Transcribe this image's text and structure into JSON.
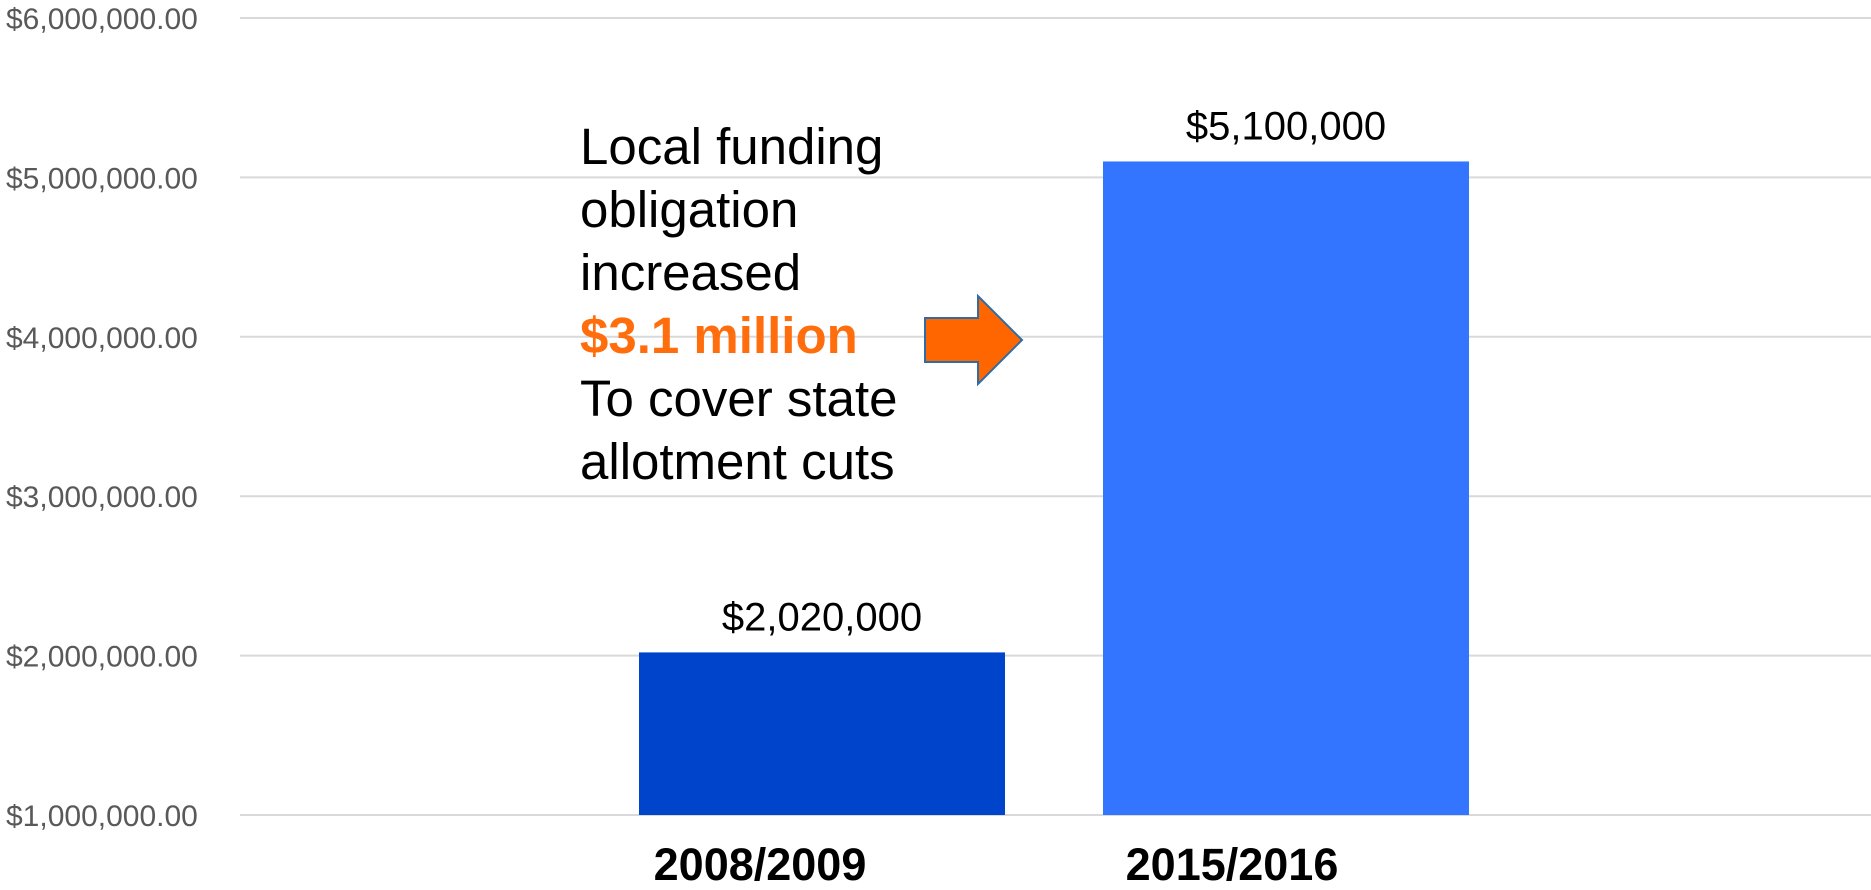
{
  "chart_data": {
    "type": "bar",
    "categories": [
      "2008/2009",
      "2015/2016"
    ],
    "values": [
      2020000,
      5100000
    ],
    "value_labels": [
      "$2,020,000",
      "$5,100,000"
    ],
    "bar_colors": [
      "#0044cc",
      "#3375ff"
    ],
    "ylim": [
      1000000,
      6000000
    ],
    "yticks": [
      1000000,
      2000000,
      3000000,
      4000000,
      5000000,
      6000000
    ],
    "ytick_labels": [
      "$1,000,000.00",
      "$2,000,000.00",
      "$3,000,000.00",
      "$4,000,000.00",
      "$5,000,000.00",
      "$6,000,000.00"
    ],
    "grid": true,
    "legend": "none",
    "annotation": {
      "lines": [
        "Local funding",
        "obligation",
        "increased",
        "$3.1 million",
        "To cover state",
        "allotment cuts"
      ],
      "highlight_color": "#ff6d0d",
      "arrow_color": "#ff6600",
      "arrow_border_color": "#2e6da4"
    }
  }
}
